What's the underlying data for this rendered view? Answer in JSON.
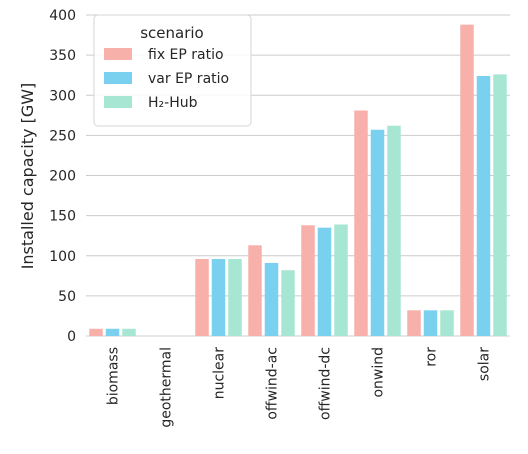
{
  "chart_data": {
    "type": "bar",
    "ylabel": "Installed capacity [GW]",
    "xlabel": "",
    "ylim": [
      0,
      400
    ],
    "yticks": [
      0,
      50,
      100,
      150,
      200,
      250,
      300,
      350,
      400
    ],
    "grid": "horizontal",
    "legend_placement": "top-left",
    "legend_title": "scenario",
    "categories": [
      "biomass",
      "geothermal",
      "nuclear",
      "offwind-ac",
      "offwind-dc",
      "onwind",
      "ror",
      "solar"
    ],
    "series": [
      {
        "name": "fix EP ratio",
        "color": "#f8b0ab",
        "values": [
          9,
          0,
          96,
          113,
          138,
          281,
          32,
          388
        ]
      },
      {
        "name": "var EP ratio",
        "color": "#7ad0ef",
        "values": [
          9,
          0,
          96,
          91,
          135,
          257,
          32,
          324
        ]
      },
      {
        "name": "H₂-Hub",
        "color": "#a8e6d4",
        "values": [
          9,
          0,
          96,
          82,
          139,
          262,
          32,
          326
        ]
      }
    ]
  }
}
